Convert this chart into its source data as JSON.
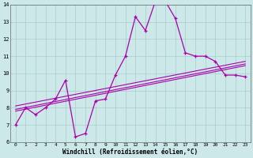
{
  "xlabel": "Windchill (Refroidissement éolien,°C)",
  "background_color": "#cce8e8",
  "grid_color": "#aacccc",
  "line_color": "#aa00aa",
  "xlim": [
    -0.5,
    23.5
  ],
  "ylim": [
    6,
    14
  ],
  "xticks": [
    0,
    1,
    2,
    3,
    4,
    5,
    6,
    7,
    8,
    9,
    10,
    11,
    12,
    13,
    14,
    15,
    16,
    17,
    18,
    19,
    20,
    21,
    22,
    23
  ],
  "yticks": [
    6,
    7,
    8,
    9,
    10,
    11,
    12,
    13,
    14
  ],
  "main_series": [
    7.0,
    8.0,
    7.6,
    8.0,
    8.5,
    9.6,
    6.3,
    6.5,
    8.4,
    8.5,
    9.9,
    11.0,
    13.3,
    12.5,
    14.2,
    14.2,
    13.2,
    11.2,
    11.0,
    11.0,
    10.7,
    9.9,
    9.9,
    9.8
  ],
  "trend1_start": 7.8,
  "trend1_end": 10.45,
  "trend2_start": 7.9,
  "trend2_end": 10.55,
  "trend3_start": 8.1,
  "trend3_end": 10.7
}
